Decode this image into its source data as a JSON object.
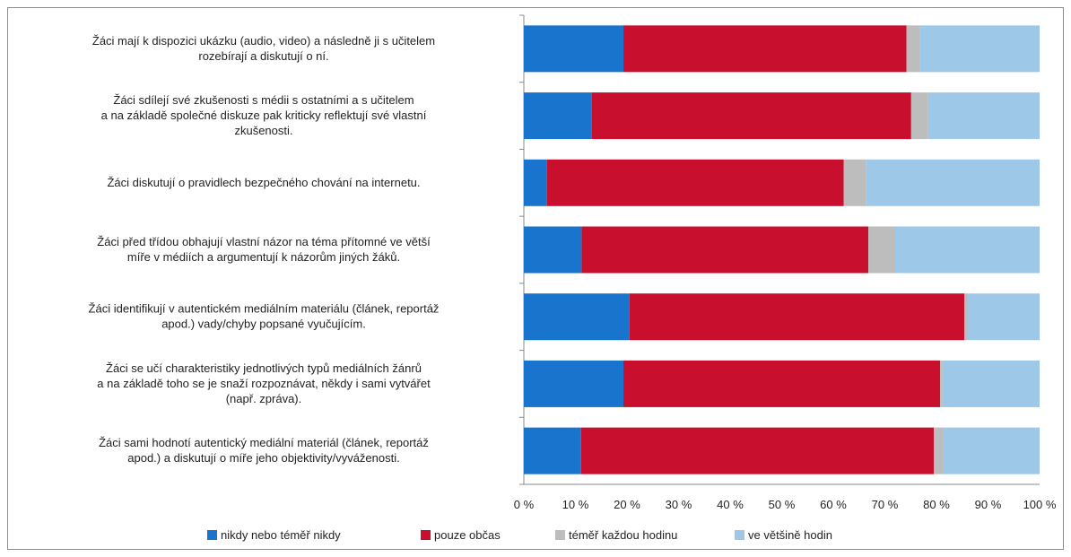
{
  "chart_data": {
    "type": "bar",
    "orientation": "horizontal",
    "stacked": "percent",
    "categories": [
      [
        "Žáci mají k dispozici ukázku (audio, video) a následně ji s učitelem",
        "rozebírají a diskutují o ní."
      ],
      [
        "Žáci sdílejí své zkušenosti s médii s ostatními a s učitelem",
        "a na  základě společné diskuze pak kriticky reflektují své vlastní",
        "zkušenosti."
      ],
      [
        "Žáci diskutují o pravidlech bezpečného chování na internetu."
      ],
      [
        "Žáci před třídou obhajují vlastní názor na téma přítomné ve větší",
        "míře v médiích a argumentují k názorům jiných žáků."
      ],
      [
        "Žáci identifikují v autentickém mediálním materiálu (článek, reportáž",
        "apod.) vady/chyby popsané vyučujícím."
      ],
      [
        "Žáci se učí charakteristiky jednotlivých typů mediálních žánrů",
        "a na  základě toho se je snaží rozpoznávat, někdy i sami vytvářet",
        "(např. zpráva)."
      ],
      [
        "Žáci sami hodnotí autentický mediální materiál (článek, reportáž",
        "apod.) a diskutují o míře jeho objektivity/vyváženosti."
      ]
    ],
    "series": [
      {
        "name": "nikdy nebo téměř nikdy",
        "color": "#1874cd",
        "values": [
          19.3,
          13.2,
          4.5,
          11.2,
          20.5,
          19.3,
          11.1
        ]
      },
      {
        "name": "pouze občas",
        "color": "#c8102e",
        "values": [
          54.9,
          61.9,
          57.5,
          55.6,
          64.9,
          61.4,
          68.4
        ]
      },
      {
        "name": "téměř každou hodinu",
        "color": "#bdbdbd",
        "values": [
          2.6,
          3.3,
          4.4,
          5.2,
          0.6,
          0.5,
          1.8
        ]
      },
      {
        "name": "ve většině hodin",
        "color": "#9dc8e8",
        "values": [
          23.2,
          21.6,
          33.6,
          28.0,
          14.0,
          18.8,
          18.7
        ]
      }
    ],
    "xlim": [
      0,
      100
    ],
    "x_ticks": [
      "0 %",
      "10 %",
      "20 %",
      "30 %",
      "40 %",
      "50 %",
      "60 %",
      "70 %",
      "80 %",
      "90 %",
      "100 %"
    ],
    "legend_position": "bottom",
    "grid": false
  }
}
